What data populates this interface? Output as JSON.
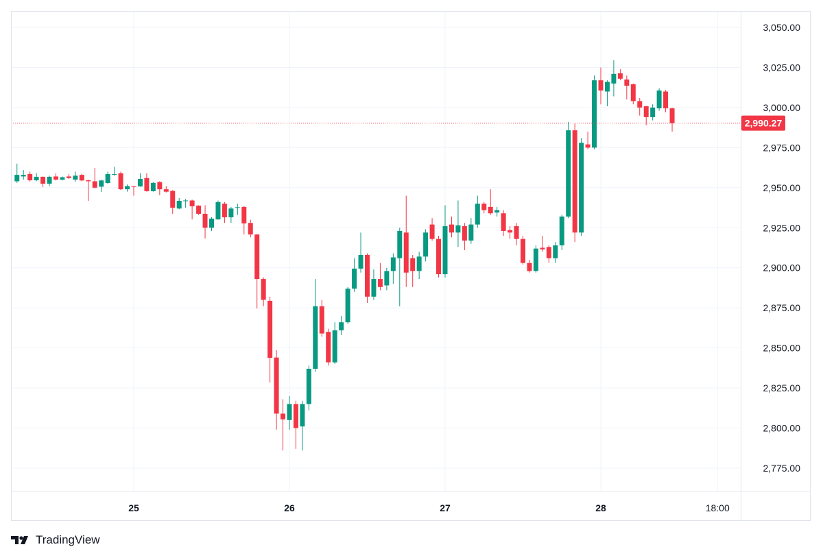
{
  "chart_data": {
    "type": "candlestick",
    "interval": "1h",
    "start": "24 06:00",
    "candle_fields": [
      "open",
      "high",
      "low",
      "close"
    ],
    "candles": [
      [
        2954,
        2965,
        2953,
        2958
      ],
      [
        2957,
        2961,
        2955,
        2958
      ],
      [
        2958.5,
        2960,
        2953.8,
        2954.6
      ],
      [
        2954.6,
        2959,
        2954,
        2956.8
      ],
      [
        2956.8,
        2957,
        2950.4,
        2952.5
      ],
      [
        2952.5,
        2957.5,
        2951,
        2956.8
      ],
      [
        2957,
        2959,
        2954.5,
        2955
      ],
      [
        2955,
        2957,
        2954.5,
        2956.5
      ],
      [
        2957,
        2958.5,
        2955.5,
        2956
      ],
      [
        2955,
        2960,
        2953.8,
        2957.5
      ],
      [
        2958,
        2958.5,
        2954,
        2954.5
      ],
      [
        2954.6,
        2955,
        2941.8,
        2954
      ],
      [
        2954,
        2962.3,
        2949.5,
        2950
      ],
      [
        2950.6,
        2955,
        2947.3,
        2954.5
      ],
      [
        2952.9,
        2960,
        2952.5,
        2958.5
      ],
      [
        2958.3,
        2963,
        2957.5,
        2958.5
      ],
      [
        2959,
        2960,
        2948.5,
        2949
      ],
      [
        2949,
        2952,
        2947.5,
        2951
      ],
      [
        2950.8,
        2951,
        2945,
        2950.6
      ],
      [
        2950.8,
        2959,
        2950.5,
        2955.5
      ],
      [
        2956,
        2959,
        2947.5,
        2947.8
      ],
      [
        2947.8,
        2953.5,
        2947.5,
        2953
      ],
      [
        2953.5,
        2954,
        2945.3,
        2949
      ],
      [
        2949,
        2951,
        2947,
        2947.5
      ],
      [
        2948,
        2948.5,
        2933.7,
        2937.5
      ],
      [
        2937,
        2943.5,
        2936.5,
        2941.8
      ],
      [
        2941.8,
        2943,
        2937.5,
        2942
      ],
      [
        2942,
        2942.5,
        2930.2,
        2938.4
      ],
      [
        2938.8,
        2939,
        2933,
        2933.7
      ],
      [
        2933.7,
        2939,
        2918.3,
        2925
      ],
      [
        2925,
        2931.5,
        2923,
        2930.7
      ],
      [
        2930.2,
        2942,
        2930,
        2941
      ],
      [
        2940,
        2941,
        2928,
        2931.5
      ],
      [
        2931.5,
        2938,
        2928,
        2937
      ],
      [
        2937.5,
        2940,
        2933,
        2937.8
      ],
      [
        2938,
        2938.5,
        2920.8,
        2927.7
      ],
      [
        2928,
        2930,
        2919,
        2920.8
      ],
      [
        2920.8,
        2921,
        2874.6,
        2893
      ],
      [
        2893,
        2894,
        2876,
        2880
      ],
      [
        2879.4,
        2882,
        2828.4,
        2843.8
      ],
      [
        2844,
        2848.6,
        2799,
        2809
      ],
      [
        2809,
        2818,
        2786,
        2805.4
      ],
      [
        2805,
        2820,
        2799,
        2815
      ],
      [
        2815,
        2817,
        2787,
        2800
      ],
      [
        2801,
        2817,
        2786,
        2815
      ],
      [
        2815,
        2839,
        2811,
        2837
      ],
      [
        2837,
        2893,
        2835,
        2876
      ],
      [
        2876,
        2880,
        2857,
        2859
      ],
      [
        2860,
        2862,
        2839,
        2841
      ],
      [
        2841,
        2866,
        2840,
        2861
      ],
      [
        2861,
        2870,
        2858,
        2866
      ],
      [
        2866,
        2888,
        2865,
        2887
      ],
      [
        2887,
        2906,
        2885,
        2899.5
      ],
      [
        2899.5,
        2922,
        2897,
        2908
      ],
      [
        2908,
        2909,
        2878,
        2882
      ],
      [
        2882,
        2899,
        2880,
        2893
      ],
      [
        2893,
        2903,
        2886,
        2888
      ],
      [
        2889,
        2900,
        2886,
        2898
      ],
      [
        2898,
        2909,
        2890,
        2906.5
      ],
      [
        2906,
        2925,
        2876,
        2923
      ],
      [
        2922,
        2945,
        2888,
        2897
      ],
      [
        2906,
        2908,
        2888,
        2898
      ],
      [
        2898,
        2910,
        2893,
        2907
      ],
      [
        2907,
        2924,
        2904,
        2922
      ],
      [
        2927,
        2931,
        2917,
        2918
      ],
      [
        2918,
        2920,
        2894,
        2896
      ],
      [
        2896,
        2939,
        2894,
        2926
      ],
      [
        2927,
        2932,
        2919,
        2922
      ],
      [
        2922,
        2942,
        2913,
        2926.5
      ],
      [
        2926,
        2928,
        2911,
        2917
      ],
      [
        2917,
        2931,
        2915,
        2927
      ],
      [
        2927,
        2945,
        2925,
        2940
      ],
      [
        2940,
        2941,
        2934,
        2936
      ],
      [
        2938,
        2949,
        2933,
        2934
      ],
      [
        2934.5,
        2938,
        2932,
        2936
      ],
      [
        2934,
        2936,
        2920,
        2923
      ],
      [
        2923.5,
        2926,
        2918,
        2922
      ],
      [
        2926,
        2928,
        2914,
        2918
      ],
      [
        2918,
        2920,
        2902,
        2903
      ],
      [
        2903,
        2905,
        2897,
        2898
      ],
      [
        2898,
        2914,
        2897,
        2912
      ],
      [
        2912.5,
        2920,
        2910,
        2911.5
      ],
      [
        2913,
        2914,
        2903,
        2906
      ],
      [
        2906,
        2916,
        2903,
        2914
      ],
      [
        2914,
        2933,
        2911,
        2932
      ],
      [
        2932,
        2991,
        2931,
        2985.8
      ],
      [
        2985.8,
        2990,
        2916,
        2922
      ],
      [
        2922,
        2981,
        2920,
        2978
      ],
      [
        2977,
        2985,
        2974,
        2975
      ],
      [
        2975,
        3020,
        2974,
        3017
      ],
      [
        3017,
        3025,
        3002,
        3010.6
      ],
      [
        3010,
        3017,
        3000.8,
        3016
      ],
      [
        3015,
        3029.5,
        3007,
        3021
      ],
      [
        3021.4,
        3024,
        3017,
        3018
      ],
      [
        3017.5,
        3020,
        3005,
        3013.6
      ],
      [
        3014.5,
        3015,
        3002,
        3004
      ],
      [
        3004,
        3006,
        2995,
        3000
      ],
      [
        3000.8,
        3001,
        2989,
        2994
      ],
      [
        2994,
        3002,
        2992,
        3000
      ],
      [
        2999.5,
        3012,
        2998,
        3010.6
      ],
      [
        3010,
        3011,
        2997,
        2999.5
      ],
      [
        2999.5,
        3000,
        2985,
        2990.27
      ]
    ],
    "ylim": [
      2765,
      3060
    ],
    "y_ticks": [
      3050,
      3025,
      3000,
      2975,
      2950,
      2925,
      2900,
      2875,
      2850,
      2825,
      2800,
      2775
    ],
    "y_tick_labels": [
      "3,050.00",
      "3,025.00",
      "3,000.00",
      "2,975.00",
      "2,950.00",
      "2,925.00",
      "2,900.00",
      "2,875.00",
      "2,850.00",
      "2,825.00",
      "2,800.00",
      "2,775.00"
    ],
    "x_ticks": [
      {
        "label": "25",
        "day": 25,
        "hour": 0
      },
      {
        "label": "26",
        "day": 26,
        "hour": 0
      },
      {
        "label": "27",
        "day": 27,
        "hour": 0
      },
      {
        "label": "28",
        "day": 28,
        "hour": 0
      },
      {
        "label": "18:00",
        "day": 28,
        "hour": 18
      }
    ],
    "last_price": 2990.27,
    "last_price_label": "2,990.27",
    "grid": true,
    "colors": {
      "up": "#089981",
      "down": "#F23645",
      "grid": "#F0F3FA",
      "last_price": "#F23645"
    }
  },
  "brand": {
    "name": "TradingView"
  }
}
